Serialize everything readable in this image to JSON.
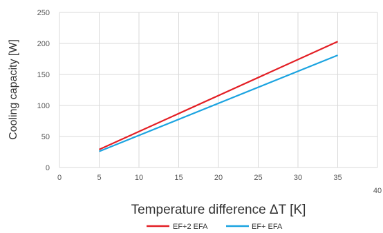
{
  "chart_data": {
    "type": "line",
    "title": "",
    "xlabel": "Temperature difference ΔT [K]",
    "ylabel": "Cooling capacity [W]",
    "xlim": [
      0,
      40
    ],
    "ylim": [
      0,
      250
    ],
    "x_ticks": [
      "0",
      "5",
      "10",
      "15",
      "20",
      "25",
      "30",
      "35",
      "40"
    ],
    "y_ticks": [
      "0",
      "50",
      "100",
      "150",
      "200",
      "250"
    ],
    "grid": true,
    "legend_position": "bottom-center",
    "series": [
      {
        "name": "EF+2 EFA",
        "color": "#e31e24",
        "x": [
          5,
          35
        ],
        "y": [
          29,
          203
        ]
      },
      {
        "name": "EF+ EFA",
        "color": "#1aa3e0",
        "x": [
          5,
          35
        ],
        "y": [
          26,
          181
        ]
      }
    ]
  }
}
